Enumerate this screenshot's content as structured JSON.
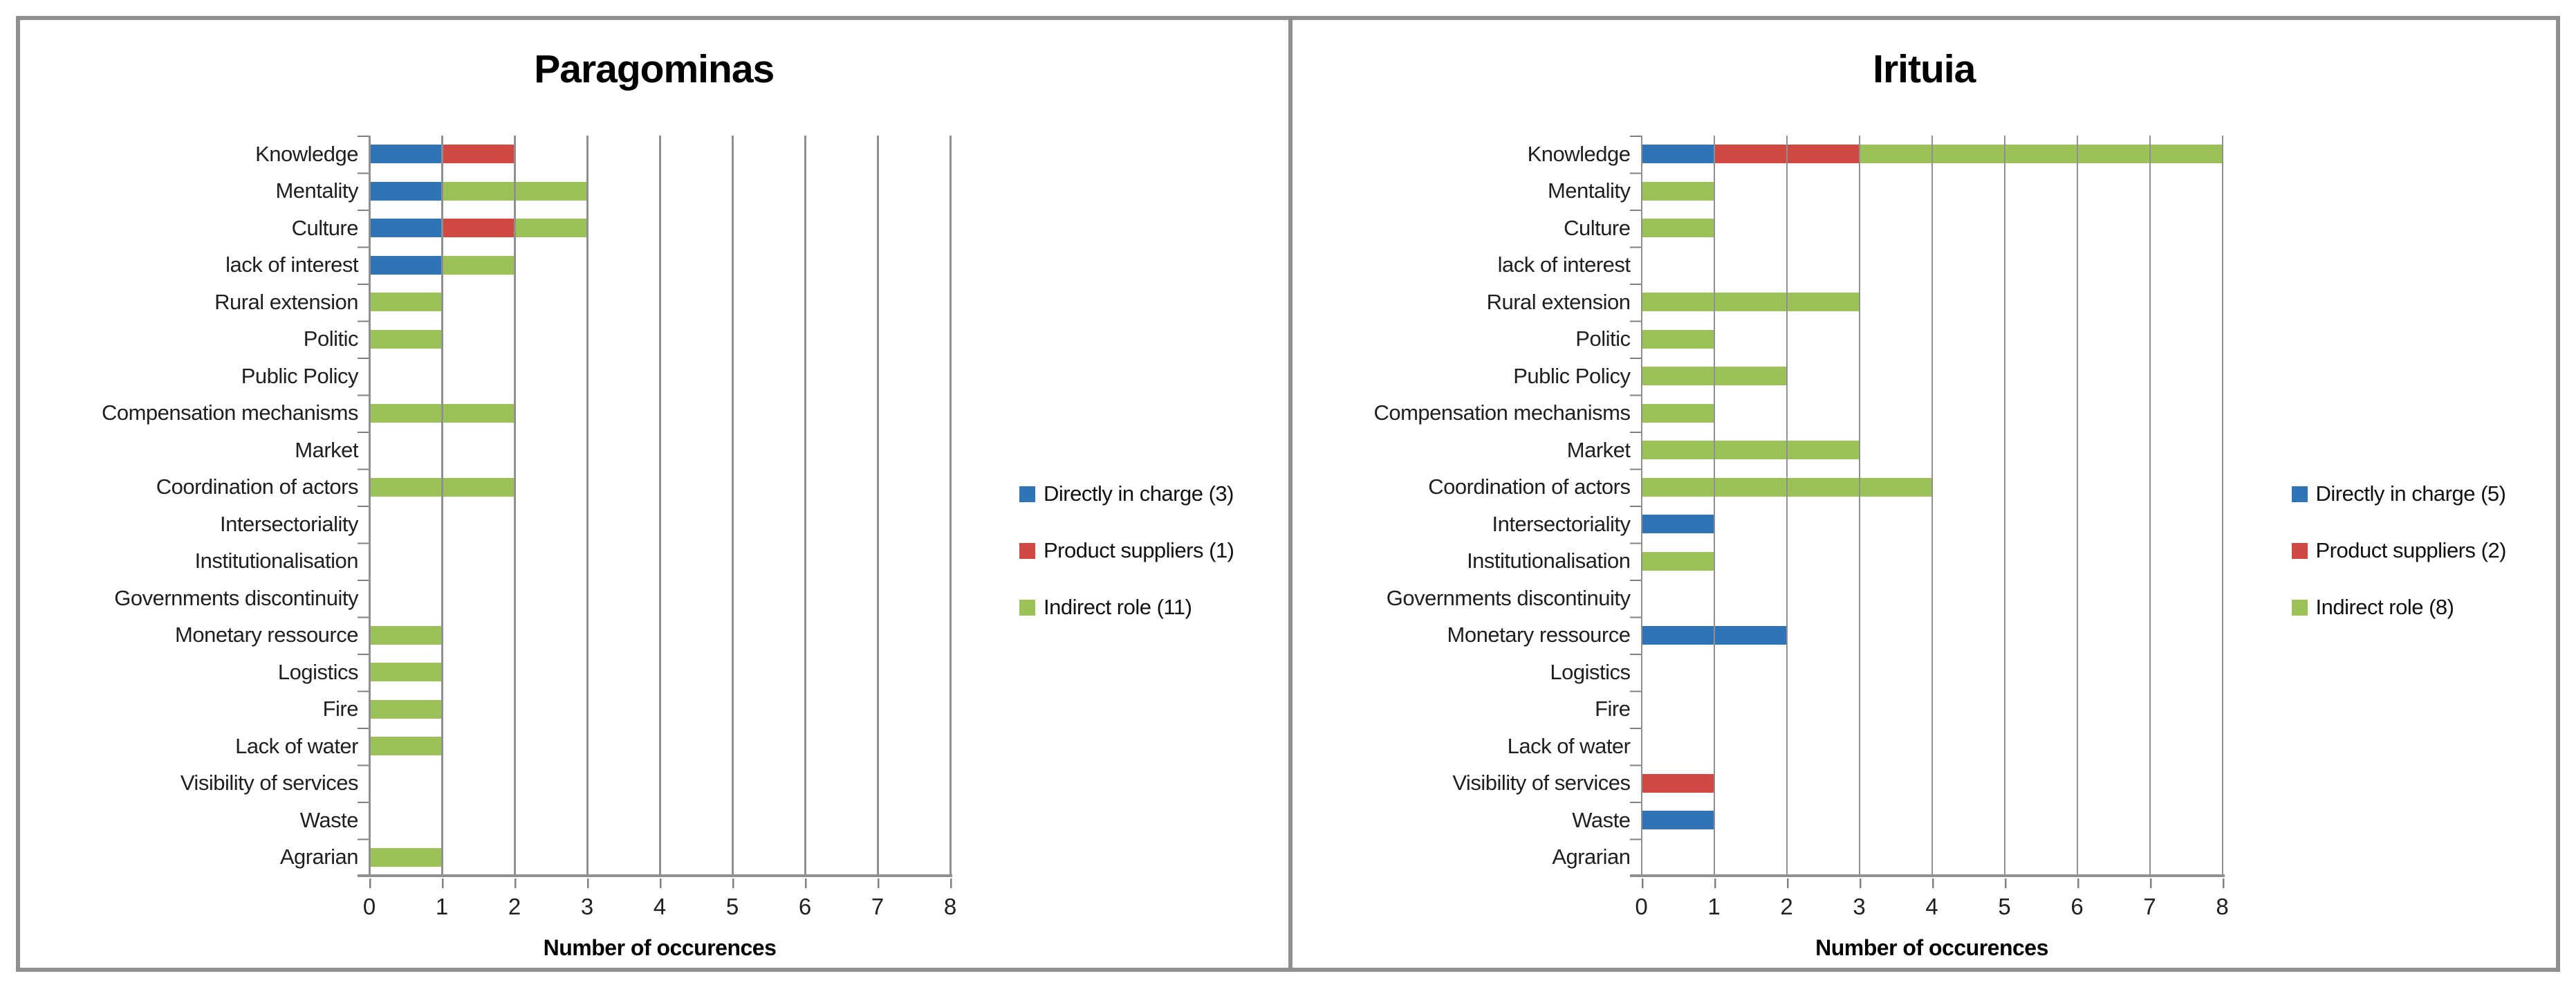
{
  "figure": {
    "border_color": "#8f8f8f",
    "grid_color": "#8f8f8f",
    "background": "#ffffff"
  },
  "chart_data": [
    {
      "type": "bar",
      "orientation": "horizontal",
      "stacked": true,
      "grid": true,
      "legend_position": "right",
      "title": "Paragominas",
      "xlabel": "Number of occurences",
      "xlim": [
        0,
        8
      ],
      "x_ticks": [
        0,
        1,
        2,
        3,
        4,
        5,
        6,
        7,
        8
      ],
      "categories": [
        "Knowledge",
        "Mentality",
        "Culture",
        "lack of interest",
        "Rural extension",
        "Politic",
        "Public Policy",
        "Compensation mechanisms",
        "Market",
        "Coordination of actors",
        "Intersectoriality",
        "Institutionalisation",
        "Governments discontinuity",
        "Monetary ressource",
        "Logistics",
        "Fire",
        "Lack of water",
        "Visibility of services",
        "Waste",
        "Agrarian"
      ],
      "series": [
        {
          "name": "Directly in charge (3)",
          "color": "#2E74B6",
          "values": [
            1,
            1,
            1,
            1,
            0,
            0,
            0,
            0,
            0,
            0,
            0,
            0,
            0,
            0,
            0,
            0,
            0,
            0,
            0,
            0
          ]
        },
        {
          "name": "Product suppliers (1)",
          "color": "#CE4A43",
          "values": [
            1,
            0,
            1,
            0,
            0,
            0,
            0,
            0,
            0,
            0,
            0,
            0,
            0,
            0,
            0,
            0,
            0,
            0,
            0,
            0
          ]
        },
        {
          "name": "Indirect role (11)",
          "color": "#9BC158",
          "values": [
            0,
            2,
            1,
            1,
            1,
            1,
            0,
            2,
            0,
            2,
            0,
            0,
            0,
            1,
            1,
            1,
            1,
            0,
            0,
            1
          ]
        }
      ]
    },
    {
      "type": "bar",
      "orientation": "horizontal",
      "stacked": true,
      "grid": true,
      "legend_position": "right",
      "title": "Irituia",
      "xlabel": "Number of occurences",
      "xlim": [
        0,
        8
      ],
      "x_ticks": [
        0,
        1,
        2,
        3,
        4,
        5,
        6,
        7,
        8
      ],
      "categories": [
        "Knowledge",
        "Mentality",
        "Culture",
        "lack of interest",
        "Rural extension",
        "Politic",
        "Public Policy",
        "Compensation mechanisms",
        "Market",
        "Coordination of actors",
        "Intersectoriality",
        "Institutionalisation",
        "Governments discontinuity",
        "Monetary ressource",
        "Logistics",
        "Fire",
        "Lack of water",
        "Visibility of services",
        "Waste",
        "Agrarian"
      ],
      "series": [
        {
          "name": "Directly in charge (5)",
          "color": "#2E74B6",
          "values": [
            1,
            0,
            0,
            0,
            0,
            0,
            0,
            0,
            0,
            0,
            1,
            0,
            0,
            2,
            0,
            0,
            0,
            0,
            1,
            0
          ]
        },
        {
          "name": "Product suppliers (2)",
          "color": "#CE4A43",
          "values": [
            2,
            0,
            0,
            0,
            0,
            0,
            0,
            0,
            0,
            0,
            0,
            0,
            0,
            0,
            0,
            0,
            0,
            1,
            0,
            0
          ]
        },
        {
          "name": "Indirect role (8)",
          "color": "#9BC158",
          "values": [
            5,
            1,
            1,
            0,
            3,
            1,
            2,
            1,
            3,
            4,
            0,
            1,
            0,
            0,
            0,
            0,
            0,
            0,
            0,
            0
          ]
        }
      ]
    }
  ]
}
